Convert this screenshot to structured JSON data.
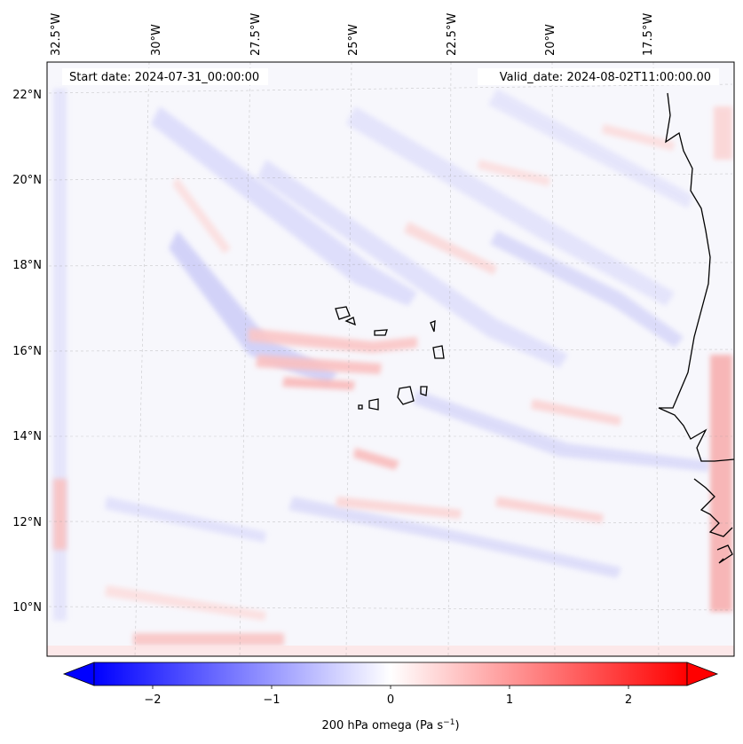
{
  "map": {
    "start_date": "Start date: 2024-07-31_00:00:00",
    "valid_date": "Valid_date: 2024-08-02T11:00:00.00",
    "longitude_labels": [
      "32.5°W",
      "30°W",
      "27.5°W",
      "25°W",
      "22.5°W",
      "20°W",
      "17.5°W"
    ],
    "latitude_labels": [
      "22°N",
      "20°N",
      "18°N",
      "16°N",
      "14°N",
      "12°N",
      "10°N"
    ],
    "field_colors": {
      "negative": "#0000ff",
      "neutral": "#ffffff",
      "positive": "#ff0000"
    }
  },
  "colorbar": {
    "label": "200 hPa omega (Pa s",
    "label_superscript": "−1",
    "label_close": ")",
    "tick_labels": [
      "−2",
      "−1",
      "0",
      "1",
      "2"
    ],
    "tick_values": [
      -2,
      -1,
      0,
      1,
      2
    ],
    "range": [
      -2.7,
      2.7
    ],
    "extend": "both"
  }
}
